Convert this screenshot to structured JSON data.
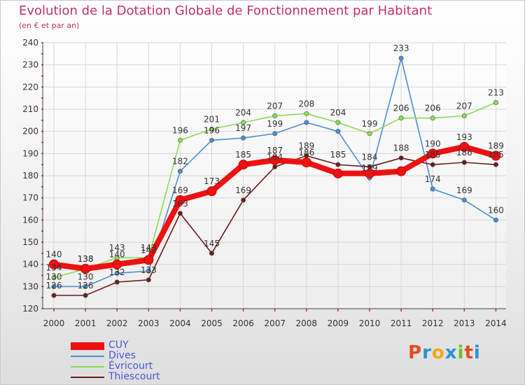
{
  "title": "Evolution de la Dotation Globale de Fonctionnement par Habitant",
  "subtitle": "(en € et par an)",
  "logo_text": "Proxiti",
  "logo_colors": [
    "#e8491d",
    "#2a8fd8",
    "#f2a900",
    "#2a8fd8",
    "#6fbf1f",
    "#e8491d",
    "#2a8fd8"
  ],
  "chart_data": {
    "type": "line",
    "title": "Evolution de la Dotation Globale de Fonctionnement par Habitant",
    "subtitle": "(en € et par an)",
    "xlabel": "",
    "ylabel": "",
    "x": [
      2000,
      2001,
      2002,
      2003,
      2004,
      2005,
      2006,
      2007,
      2008,
      2009,
      2010,
      2011,
      2012,
      2013,
      2014
    ],
    "yticks": [
      120,
      130,
      140,
      150,
      160,
      170,
      180,
      190,
      200,
      210,
      220,
      230,
      240
    ],
    "ylim": [
      120,
      240
    ],
    "grid": true,
    "legend_position": "bottom-left",
    "series": [
      {
        "name": "CUY",
        "color": "#ee1111",
        "values": [
          140,
          138,
          140,
          142,
          169,
          173,
          185,
          187,
          186,
          181,
          181,
          182,
          190,
          193,
          189
        ]
      },
      {
        "name": "Dives",
        "color": "#4d8fd0",
        "values": [
          130,
          130,
          136,
          137,
          182,
          196,
          197,
          199,
          204,
          200,
          179,
          233,
          174,
          169,
          160
        ]
      },
      {
        "name": "Évricourt",
        "color": "#88dd55",
        "values": [
          134,
          138,
          143,
          143,
          196,
          201,
          204,
          207,
          208,
          204,
          199,
          206,
          206,
          207,
          213
        ]
      },
      {
        "name": "Thiescourt",
        "color": "#6b1c1c",
        "values": [
          126,
          126,
          132,
          133,
          163,
          145,
          169,
          184,
          189,
          185,
          184,
          188,
          185,
          186,
          185
        ]
      }
    ],
    "data_labels": [
      {
        "x": 2000,
        "text": "140",
        "series": 0
      },
      {
        "x": 2001,
        "text": "138",
        "series": 0
      },
      {
        "x": 2002,
        "text": "140",
        "series": 0
      },
      {
        "x": 2003,
        "text": "142",
        "series": 0
      },
      {
        "x": 2004,
        "text": "169",
        "series": 0
      },
      {
        "x": 2005,
        "text": "173",
        "series": 0
      },
      {
        "x": 2006,
        "text": "185",
        "series": 0
      },
      {
        "x": 2007,
        "text": "187",
        "series": 0
      },
      {
        "x": 2008,
        "text": "186",
        "series": 0
      },
      {
        "x": 2012,
        "text": "190",
        "series": 0
      },
      {
        "x": 2013,
        "text": "193",
        "series": 0
      },
      {
        "x": 2014,
        "text": "189",
        "series": 0
      },
      {
        "x": 2000,
        "text": "130",
        "series": 1
      },
      {
        "x": 2001,
        "text": "130",
        "series": 1
      },
      {
        "x": 2004,
        "text": "182",
        "series": 1
      },
      {
        "x": 2005,
        "text": "196",
        "series": 1
      },
      {
        "x": 2006,
        "text": "197",
        "series": 1
      },
      {
        "x": 2007,
        "text": "199",
        "series": 1
      },
      {
        "x": 2010,
        "text": "179",
        "series": 1
      },
      {
        "x": 2011,
        "text": "233",
        "series": 1
      },
      {
        "x": 2012,
        "text": "174",
        "series": 1
      },
      {
        "x": 2013,
        "text": "169",
        "series": 1
      },
      {
        "x": 2014,
        "text": "160",
        "series": 1
      },
      {
        "x": 2000,
        "text": "134",
        "series": 2
      },
      {
        "x": 2001,
        "text": "138",
        "series": 2
      },
      {
        "x": 2002,
        "text": "143",
        "series": 2
      },
      {
        "x": 2003,
        "text": "143",
        "series": 2
      },
      {
        "x": 2004,
        "text": "196",
        "series": 2
      },
      {
        "x": 2005,
        "text": "201",
        "series": 2
      },
      {
        "x": 2006,
        "text": "204",
        "series": 2
      },
      {
        "x": 2007,
        "text": "207",
        "series": 2
      },
      {
        "x": 2008,
        "text": "208",
        "series": 2
      },
      {
        "x": 2009,
        "text": "204",
        "series": 2
      },
      {
        "x": 2010,
        "text": "199",
        "series": 2
      },
      {
        "x": 2011,
        "text": "206",
        "series": 2
      },
      {
        "x": 2012,
        "text": "206",
        "series": 2
      },
      {
        "x": 2013,
        "text": "207",
        "series": 2
      },
      {
        "x": 2014,
        "text": "213",
        "series": 2
      },
      {
        "x": 2000,
        "text": "126",
        "series": 3
      },
      {
        "x": 2001,
        "text": "126",
        "series": 3
      },
      {
        "x": 2002,
        "text": "132",
        "series": 3
      },
      {
        "x": 2003,
        "text": "133",
        "series": 3
      },
      {
        "x": 2004,
        "text": "163",
        "series": 3
      },
      {
        "x": 2005,
        "text": "145",
        "series": 3
      },
      {
        "x": 2006,
        "text": "169",
        "series": 3
      },
      {
        "x": 2007,
        "text": "184",
        "series": 3
      },
      {
        "x": 2008,
        "text": "189",
        "series": 3
      },
      {
        "x": 2009,
        "text": "185",
        "series": 3
      },
      {
        "x": 2010,
        "text": "184",
        "series": 3
      },
      {
        "x": 2011,
        "text": "188",
        "series": 3
      },
      {
        "x": 2012,
        "text": "185",
        "series": 3
      },
      {
        "x": 2013,
        "text": "186",
        "series": 3
      },
      {
        "x": 2014,
        "text": "185",
        "series": 3
      }
    ]
  }
}
